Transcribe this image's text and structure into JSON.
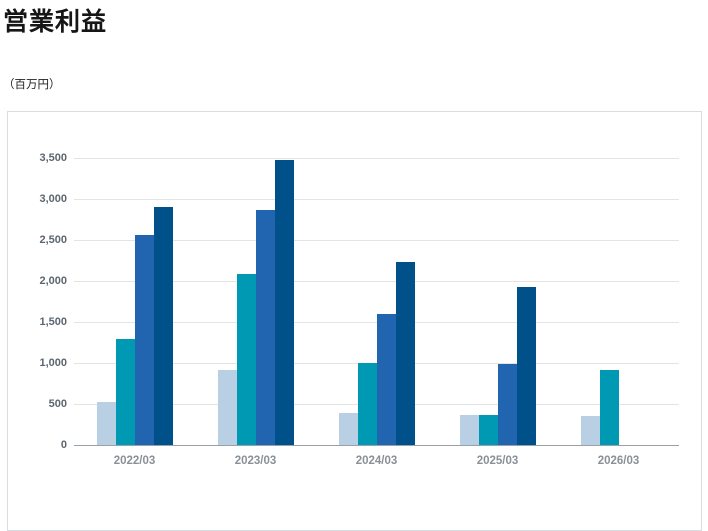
{
  "page": {
    "title": "営業利益",
    "unit_label": "（百万円）"
  },
  "chart_data": {
    "type": "bar",
    "title": "営業利益",
    "unit": "百万円",
    "categories": [
      "2022/03",
      "2023/03",
      "2024/03",
      "2025/03",
      "2026/03"
    ],
    "series": [
      {
        "name": "bar-1",
        "color": "#b8cfe4",
        "values": [
          530,
          920,
          390,
          360,
          355
        ]
      },
      {
        "name": "bar-2",
        "color": "#0099b4",
        "values": [
          1290,
          2080,
          1000,
          370,
          910
        ]
      },
      {
        "name": "bar-3",
        "color": "#2165b0",
        "values": [
          2560,
          2860,
          1600,
          990,
          null
        ]
      },
      {
        "name": "bar-4",
        "color": "#00518a",
        "values": [
          2900,
          3470,
          2230,
          1930,
          null
        ]
      }
    ],
    "ylim": [
      0,
      3500
    ],
    "ytick_interval": 500,
    "yticks": [
      0,
      500,
      1000,
      1500,
      2000,
      2500,
      3000,
      3500
    ],
    "ytick_labels": [
      "0",
      "500",
      "1,000",
      "1,500",
      "2,000",
      "2,500",
      "3,000",
      "3,500"
    ],
    "grid": true,
    "legend": "none"
  },
  "colors": {
    "grid": "#e4e4e4",
    "axis_line": "#9aa0a6",
    "y_label": "#5b6670",
    "x_label": "#8a9097",
    "card_border": "#d9dce1",
    "title": "#161616"
  }
}
